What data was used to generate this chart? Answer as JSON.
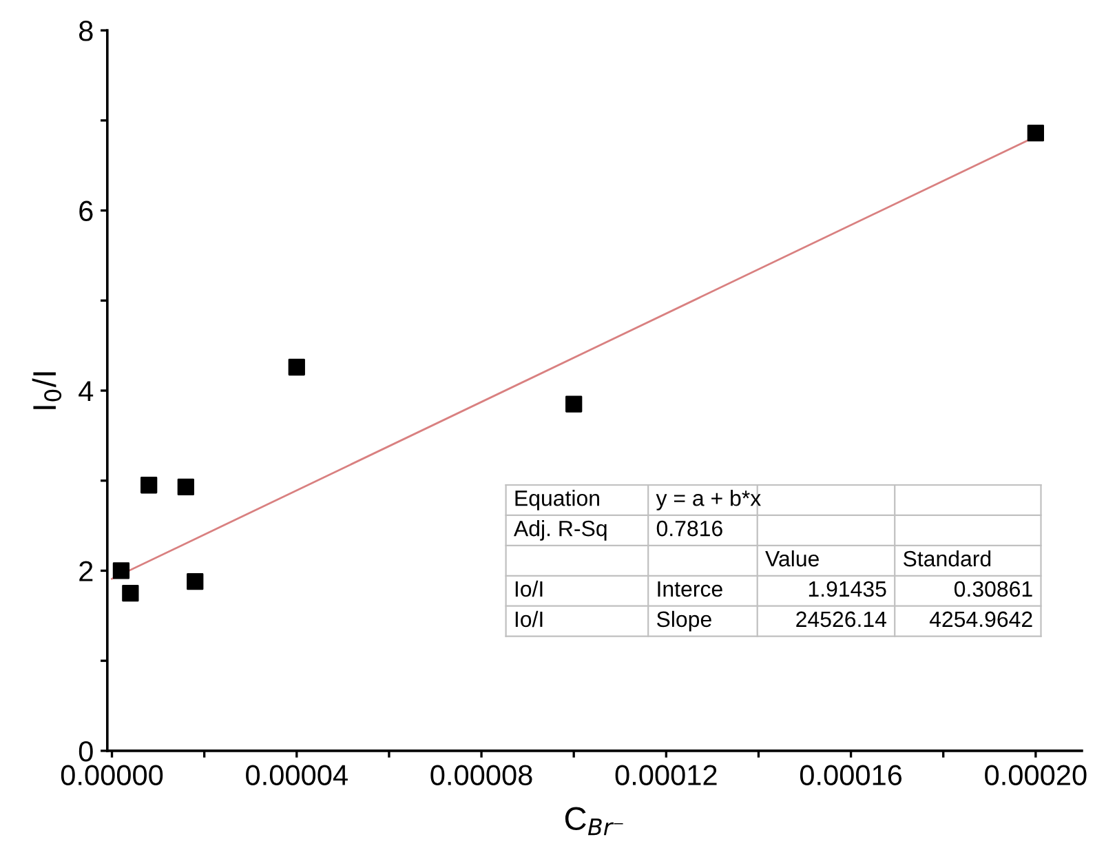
{
  "chart_data": {
    "type": "scatter",
    "xlabel": "C$_{Br⁻}$",
    "ylabel": "I$_{0}$/I",
    "series": [
      {
        "color": "#000000",
        "marker": "square",
        "x": [
          2e-06,
          4e-06,
          8e-06,
          1.6e-05,
          1.8e-05,
          4e-05,
          0.0001,
          0.0002
        ],
        "values": [
          2.0,
          1.75,
          2.95,
          2.93,
          1.88,
          4.26,
          3.85,
          6.86
        ]
      },
      {
        "type": "line",
        "color": "#d98080",
        "line_style": "solid",
        "marker": "none",
        "x": [
          0,
          0.0002
        ],
        "values": [
          1.91,
          6.82
        ]
      }
    ],
    "xlim": [
      -1e-06,
      0.00021
    ],
    "ylim": [
      0,
      8
    ],
    "xticks": [
      {
        "value": 0,
        "label": "0.00000"
      },
      {
        "value": 2e-05,
        "label": null
      },
      {
        "value": 4e-05,
        "label": "0.00004"
      },
      {
        "value": 6e-05,
        "label": null
      },
      {
        "value": 8e-05,
        "label": "0.00008"
      },
      {
        "value": 0.0001,
        "label": null
      },
      {
        "value": 0.00012,
        "label": "0.00012"
      },
      {
        "value": 0.00014,
        "label": null
      },
      {
        "value": 0.00016,
        "label": "0.00016"
      },
      {
        "value": 0.00018,
        "label": null
      },
      {
        "value": 0.0002,
        "label": "0.00020"
      }
    ],
    "yticks": [
      0,
      {
        "value": 1,
        "label": null
      },
      2,
      {
        "value": 3,
        "label": null
      },
      4,
      {
        "value": 5,
        "label": null
      },
      6,
      {
        "value": 7,
        "label": null
      },
      8
    ],
    "grid": false,
    "legend": false,
    "annotations": [
      "Equation\ty = a + b*x\t\t",
      "Adj. R-Sq\t0.7816\t\t",
      "\t\tValue\tStandard",
      "Io/I\tInterce\t1.91435\t0.30861",
      "Io/I\tSlope\t24526.14\t4254.9642"
    ]
  }
}
